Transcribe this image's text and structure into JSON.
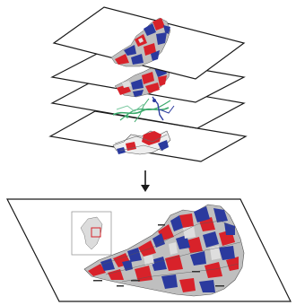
{
  "figure": {
    "layers": [
      {
        "name": "red-blue-district-layer",
        "content": "district-map"
      },
      {
        "name": "red-blue-district-layer-2",
        "content": "district-map"
      },
      {
        "name": "road-river-network-layer",
        "content": "network"
      },
      {
        "name": "base-boundary-layer",
        "content": "base-map"
      }
    ],
    "arrow": {
      "direction": "down"
    },
    "output": {
      "content": "composite-district-map",
      "inset": "state-locator-map"
    },
    "colors": {
      "red": "#d8222a",
      "blue": "#2b3a9e",
      "gray": "#bfbfbf",
      "light_gray": "#dedede",
      "green": "#3aa96b",
      "outline": "#1a1a1a",
      "road": "#6a6a6a"
    }
  }
}
